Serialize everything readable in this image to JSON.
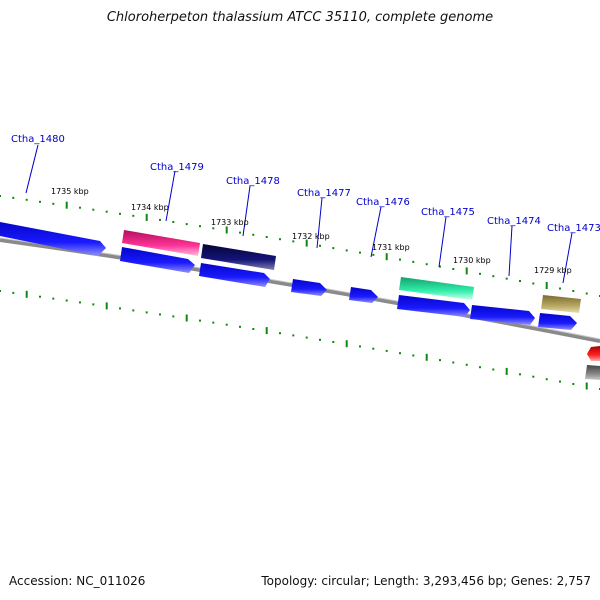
{
  "title": "Chloroherpeton thalassium ATCC 35110, complete genome",
  "accession": "Accession: NC_011026",
  "summary": "Topology: circular; Length: 3,293,456 bp; Genes: 2,757",
  "colors": {
    "gene_label": "#0000cc",
    "cds_blue": "#0a0aee",
    "tick_green": "#118811",
    "backbone": "#808080",
    "magenta": "#ee2288",
    "navy": "#101070",
    "teal": "#33ddaa",
    "khaki": "#b0a060",
    "red": "#ee1111"
  },
  "gene_labels": [
    "Ctha_1480",
    "Ctha_1479",
    "Ctha_1478",
    "Ctha_1477",
    "Ctha_1476",
    "Ctha_1475",
    "Ctha_1474",
    "Ctha_1473"
  ],
  "kbp_labels": [
    "1735 kbp",
    "1734 kbp",
    "1733 kbp",
    "1732 kbp",
    "1731 kbp",
    "1730 kbp",
    "1729 kbp"
  ]
}
